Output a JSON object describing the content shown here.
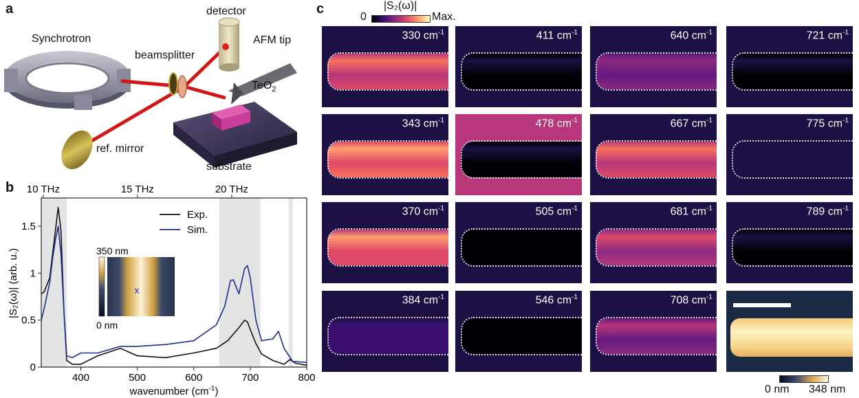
{
  "panel_a": {
    "letter": "a",
    "labels": {
      "synchrotron": "Synchrotron",
      "beamsplitter": "beamsplitter",
      "detector": "detector",
      "afm_tip": "AFM tip",
      "teo2_main": "TeO",
      "teo2_sub": "2",
      "ref_mirror": "ref. mirror",
      "substrate": "substrate"
    }
  },
  "panel_b": {
    "letter": "b",
    "top_axis": [
      "10 THz",
      "15 THz",
      "20 THz"
    ],
    "x_ticks": [
      "400",
      "500",
      "600",
      "700",
      "800"
    ],
    "y_ticks": [
      "0",
      "0.5",
      "1",
      "1.5"
    ],
    "xlabel_main": "wavenumber (cm",
    "xlabel_sup": "-1",
    "xlabel_end": ")",
    "ylabel": "|S₂(ω)| (arb. u.)",
    "legend": [
      "Exp.",
      "Sim."
    ],
    "inset": {
      "top_label": "350 nm",
      "bottom_label": "0 nm",
      "marker": "x"
    }
  },
  "panel_c": {
    "letter": "c",
    "colorbar": {
      "min": "0",
      "title": "|S₂(ω)|",
      "max": "Max."
    },
    "scalebar": {
      "min": "0 nm",
      "max": "348 nm"
    },
    "tiles": [
      [
        "330",
        "411",
        "640",
        "721"
      ],
      [
        "343",
        "478",
        "667",
        "775"
      ],
      [
        "370",
        "505",
        "681",
        "789"
      ],
      [
        "384",
        "546",
        "708",
        ""
      ]
    ],
    "unit_main": " cm",
    "unit_sup": "-1",
    "intensity": [
      [
        0.65,
        0.05,
        0.42,
        0.05
      ],
      [
        0.8,
        0.05,
        0.7,
        0.1
      ],
      [
        0.75,
        0.03,
        0.55,
        0.05
      ],
      [
        0.2,
        0.03,
        0.45,
        0
      ]
    ]
  },
  "chart_data": {
    "type": "line",
    "title": "",
    "xlabel": "wavenumber (cm-1)",
    "ylabel": "|S2(ω)| (arb. u.)",
    "xlim": [
      330,
      800
    ],
    "ylim": [
      0,
      1.8
    ],
    "secondary_x_ticks": [
      "10 THz",
      "15 THz",
      "20 THz"
    ],
    "shaded_regions": [
      [
        330,
        375
      ],
      [
        645,
        718
      ],
      [
        768,
        775
      ]
    ],
    "legend_position": "top-right",
    "series": [
      {
        "name": "Exp.",
        "color": "#111111",
        "x": [
          330,
          335,
          345,
          350,
          355,
          360,
          365,
          370,
          375,
          385,
          400,
          430,
          470,
          500,
          550,
          600,
          640,
          660,
          680,
          690,
          695,
          700,
          710,
          720,
          740,
          760,
          770,
          780,
          800
        ],
        "y": [
          0.78,
          0.8,
          0.95,
          1.2,
          1.45,
          1.7,
          1.45,
          0.6,
          0.07,
          0.03,
          0.03,
          0.12,
          0.2,
          0.12,
          0.1,
          0.15,
          0.2,
          0.28,
          0.42,
          0.5,
          0.48,
          0.4,
          0.25,
          0.14,
          0.07,
          0.03,
          0.08,
          0.04,
          0.02
        ]
      },
      {
        "name": "Sim.",
        "color": "#1f2d8f",
        "x": [
          330,
          335,
          345,
          350,
          355,
          360,
          365,
          370,
          375,
          385,
          400,
          430,
          470,
          500,
          550,
          600,
          640,
          655,
          665,
          670,
          680,
          690,
          695,
          700,
          710,
          720,
          740,
          750,
          760,
          775,
          800
        ],
        "y": [
          0.5,
          0.62,
          0.9,
          1.15,
          1.35,
          1.5,
          1.2,
          0.6,
          0.12,
          0.1,
          0.15,
          0.15,
          0.22,
          0.22,
          0.24,
          0.28,
          0.45,
          0.65,
          0.92,
          0.93,
          0.78,
          1.05,
          1.08,
          0.95,
          0.5,
          0.28,
          0.3,
          0.38,
          0.2,
          0.06,
          0.05
        ]
      }
    ]
  }
}
